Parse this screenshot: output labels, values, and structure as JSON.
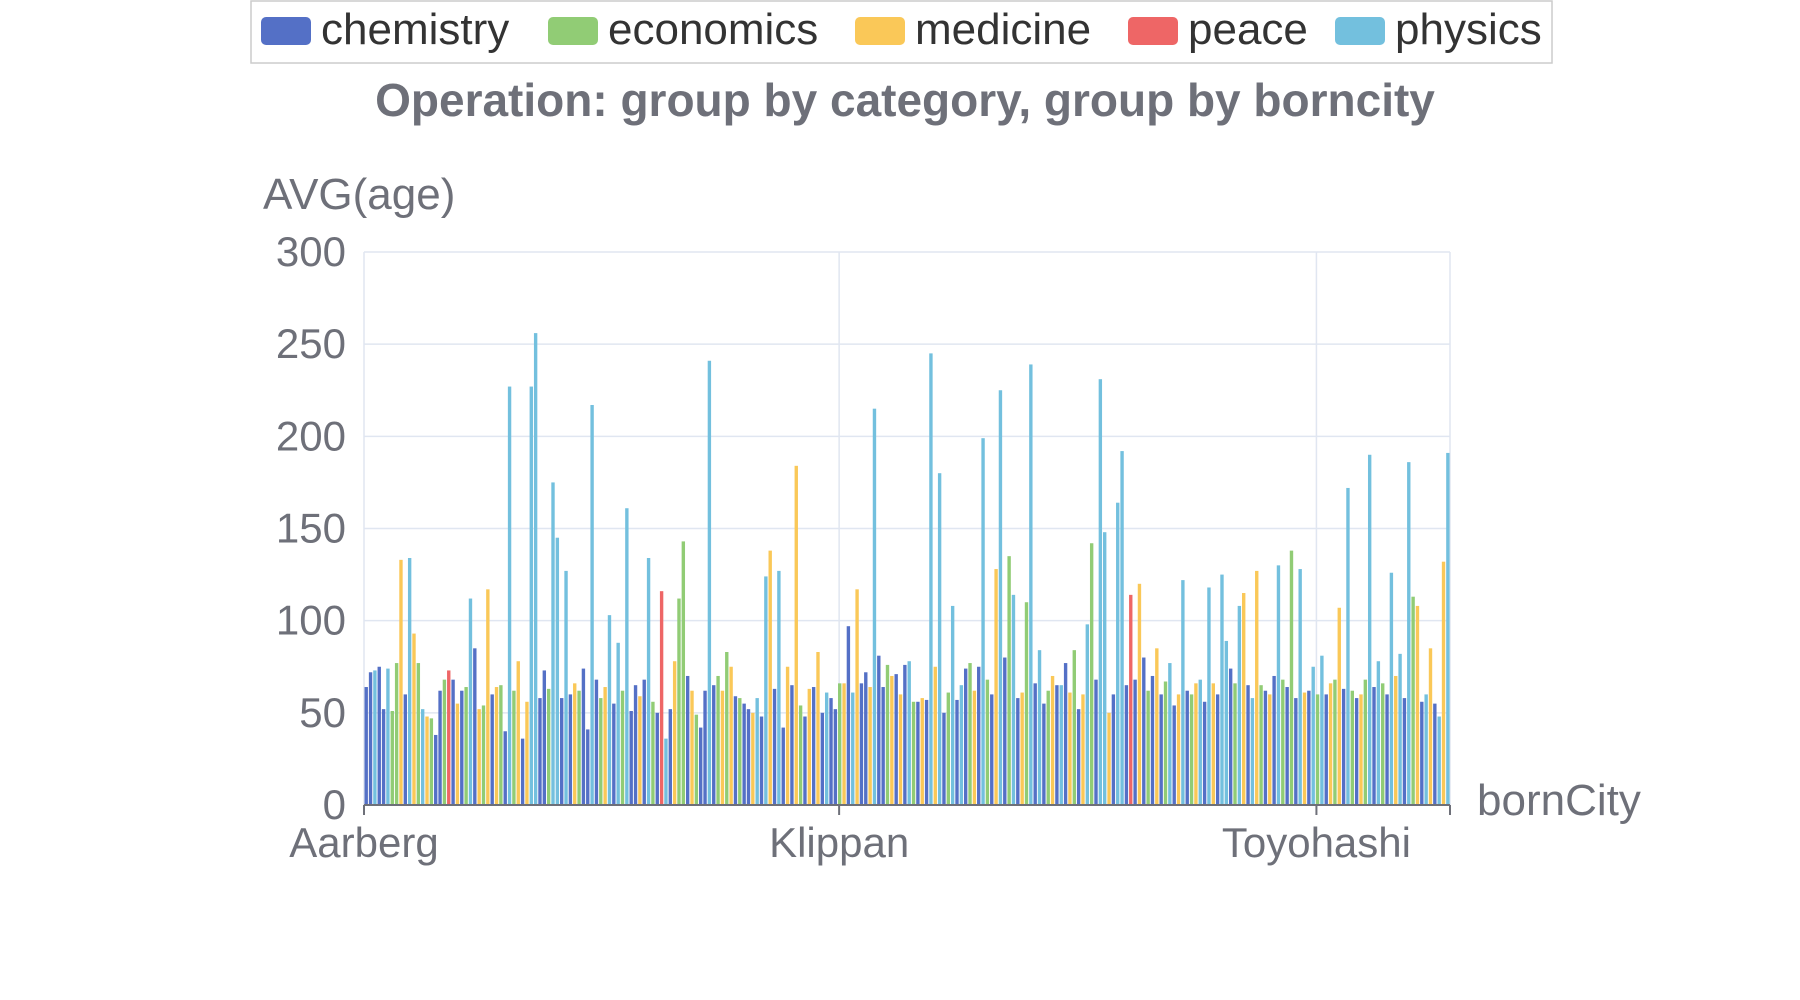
{
  "chart_data": {
    "type": "bar",
    "title": "Operation: group by category, group by borncity",
    "xlabel": "bornCity",
    "ylabel": "AVG(age)",
    "ylim": [
      0,
      300
    ],
    "y_ticks": [
      "0",
      "50",
      "100",
      "150",
      "200",
      "250",
      "300"
    ],
    "x_tick_labels": [
      "Aarberg",
      "Klippan",
      "Toyohashi"
    ],
    "grid": true,
    "legend_position": "top",
    "stacked": true,
    "series": [
      {
        "name": "chemistry",
        "color": "#5470c6"
      },
      {
        "name": "economics",
        "color": "#91cc75"
      },
      {
        "name": "medicine",
        "color": "#fac858"
      },
      {
        "name": "peace",
        "color": "#ee6666"
      },
      {
        "name": "physics",
        "color": "#73c0de"
      }
    ],
    "stacks": [
      [
        0,
        64
      ],
      [
        0,
        72
      ],
      [
        4,
        73
      ],
      [
        0,
        75
      ],
      [
        0,
        52
      ],
      [
        4,
        74
      ],
      [
        1,
        51
      ],
      [
        1,
        77
      ],
      [
        2,
        133
      ],
      [
        0,
        60
      ],
      [
        4,
        134
      ],
      [
        2,
        93
      ],
      [
        1,
        77
      ],
      [
        4,
        52
      ],
      [
        2,
        48
      ],
      [
        1,
        47
      ],
      [
        0,
        38
      ],
      [
        0,
        62
      ],
      [
        1,
        68
      ],
      [
        3,
        73
      ],
      [
        0,
        68
      ],
      [
        2,
        55
      ],
      [
        0,
        62
      ],
      [
        1,
        64
      ],
      [
        4,
        112
      ],
      [
        0,
        85
      ],
      [
        2,
        52
      ],
      [
        1,
        54
      ],
      [
        2,
        117
      ],
      [
        0,
        60
      ],
      [
        2,
        64
      ],
      [
        1,
        65
      ],
      [
        0,
        40
      ],
      [
        4,
        227
      ],
      [
        1,
        62
      ],
      [
        2,
        78
      ],
      [
        0,
        36
      ],
      [
        2,
        56
      ],
      [
        4,
        227
      ],
      [
        4,
        256
      ],
      [
        0,
        58
      ],
      [
        0,
        73
      ],
      [
        1,
        63
      ],
      [
        4,
        175
      ],
      [
        4,
        145
      ],
      [
        0,
        58
      ],
      [
        4,
        127
      ],
      [
        0,
        60
      ],
      [
        2,
        66
      ],
      [
        1,
        62
      ],
      [
        0,
        74
      ],
      [
        0,
        41
      ],
      [
        4,
        217
      ],
      [
        0,
        68
      ],
      [
        1,
        58
      ],
      [
        2,
        64
      ],
      [
        4,
        103
      ],
      [
        0,
        55
      ],
      [
        4,
        88
      ],
      [
        1,
        62
      ],
      [
        4,
        161
      ],
      [
        0,
        51
      ],
      [
        0,
        65
      ],
      [
        2,
        59
      ],
      [
        0,
        68
      ],
      [
        4,
        134
      ],
      [
        1,
        56
      ],
      [
        0,
        50
      ],
      [
        3,
        116
      ],
      [
        4,
        36
      ],
      [
        0,
        52
      ],
      [
        2,
        78
      ],
      [
        1,
        112
      ],
      [
        1,
        143
      ],
      [
        0,
        70
      ],
      [
        2,
        62
      ],
      [
        1,
        49
      ],
      [
        0,
        42
      ],
      [
        0,
        62
      ],
      [
        4,
        241
      ],
      [
        0,
        65
      ],
      [
        1,
        70
      ],
      [
        2,
        62
      ],
      [
        1,
        83
      ],
      [
        2,
        75
      ],
      [
        0,
        59
      ],
      [
        1,
        58
      ],
      [
        0,
        55
      ],
      [
        0,
        52
      ],
      [
        2,
        50
      ],
      [
        4,
        58
      ],
      [
        0,
        48
      ],
      [
        4,
        124
      ],
      [
        2,
        138
      ],
      [
        0,
        63
      ],
      [
        4,
        127
      ],
      [
        0,
        42
      ],
      [
        2,
        75
      ],
      [
        0,
        65
      ],
      [
        2,
        184
      ],
      [
        1,
        54
      ],
      [
        0,
        48
      ],
      [
        2,
        63
      ],
      [
        0,
        64
      ],
      [
        2,
        83
      ],
      [
        0,
        50
      ],
      [
        4,
        61
      ],
      [
        0,
        58
      ],
      [
        0,
        52
      ],
      [
        1,
        66
      ],
      [
        2,
        66
      ],
      [
        0,
        97
      ],
      [
        4,
        61
      ],
      [
        2,
        117
      ],
      [
        0,
        66
      ],
      [
        0,
        72
      ],
      [
        2,
        64
      ],
      [
        4,
        215
      ],
      [
        0,
        81
      ],
      [
        0,
        64
      ],
      [
        1,
        76
      ],
      [
        2,
        70
      ],
      [
        0,
        71
      ],
      [
        2,
        60
      ],
      [
        0,
        76
      ],
      [
        4,
        78
      ],
      [
        1,
        56
      ],
      [
        0,
        56
      ],
      [
        2,
        58
      ],
      [
        0,
        57
      ],
      [
        4,
        245
      ],
      [
        2,
        75
      ],
      [
        4,
        180
      ],
      [
        0,
        50
      ],
      [
        1,
        61
      ],
      [
        4,
        108
      ],
      [
        0,
        57
      ],
      [
        4,
        65
      ],
      [
        0,
        74
      ],
      [
        1,
        77
      ],
      [
        2,
        62
      ],
      [
        0,
        75
      ],
      [
        4,
        199
      ],
      [
        1,
        68
      ],
      [
        0,
        60
      ],
      [
        2,
        128
      ],
      [
        4,
        225
      ],
      [
        0,
        80
      ],
      [
        1,
        135
      ],
      [
        4,
        114
      ],
      [
        0,
        58
      ],
      [
        2,
        61
      ],
      [
        1,
        110
      ],
      [
        4,
        239
      ],
      [
        0,
        66
      ],
      [
        4,
        84
      ],
      [
        0,
        55
      ],
      [
        1,
        62
      ],
      [
        2,
        70
      ],
      [
        0,
        65
      ],
      [
        4,
        65
      ],
      [
        0,
        77
      ],
      [
        2,
        61
      ],
      [
        1,
        84
      ],
      [
        0,
        52
      ],
      [
        2,
        60
      ],
      [
        4,
        98
      ],
      [
        1,
        142
      ],
      [
        0,
        68
      ],
      [
        4,
        231
      ],
      [
        4,
        148
      ],
      [
        2,
        50
      ],
      [
        0,
        60
      ],
      [
        4,
        164
      ],
      [
        4,
        192
      ],
      [
        0,
        65
      ],
      [
        3,
        114
      ],
      [
        0,
        68
      ],
      [
        2,
        120
      ],
      [
        0,
        80
      ],
      [
        1,
        62
      ],
      [
        0,
        70
      ],
      [
        2,
        85
      ],
      [
        0,
        60
      ],
      [
        1,
        67
      ],
      [
        4,
        77
      ],
      [
        0,
        54
      ],
      [
        2,
        60
      ],
      [
        4,
        122
      ],
      [
        0,
        62
      ],
      [
        1,
        60
      ],
      [
        2,
        66
      ],
      [
        4,
        68
      ],
      [
        0,
        56
      ],
      [
        4,
        118
      ],
      [
        2,
        66
      ],
      [
        0,
        60
      ],
      [
        4,
        125
      ],
      [
        4,
        89
      ],
      [
        0,
        74
      ],
      [
        1,
        66
      ],
      [
        4,
        108
      ],
      [
        2,
        115
      ],
      [
        0,
        65
      ],
      [
        4,
        58
      ],
      [
        2,
        127
      ],
      [
        1,
        65
      ],
      [
        0,
        62
      ],
      [
        2,
        60
      ],
      [
        0,
        70
      ],
      [
        4,
        130
      ],
      [
        1,
        68
      ],
      [
        0,
        64
      ],
      [
        1,
        138
      ],
      [
        0,
        58
      ],
      [
        4,
        128
      ],
      [
        2,
        61
      ],
      [
        0,
        62
      ],
      [
        4,
        75
      ],
      [
        1,
        60
      ],
      [
        4,
        81
      ],
      [
        0,
        60
      ],
      [
        2,
        66
      ],
      [
        1,
        68
      ],
      [
        2,
        107
      ],
      [
        0,
        63
      ],
      [
        4,
        172
      ],
      [
        1,
        62
      ],
      [
        0,
        58
      ],
      [
        2,
        60
      ],
      [
        1,
        68
      ],
      [
        4,
        190
      ],
      [
        0,
        64
      ],
      [
        4,
        78
      ],
      [
        1,
        66
      ],
      [
        0,
        60
      ],
      [
        4,
        126
      ],
      [
        2,
        70
      ],
      [
        4,
        82
      ],
      [
        0,
        58
      ],
      [
        4,
        186
      ],
      [
        1,
        113
      ],
      [
        2,
        108
      ],
      [
        0,
        56
      ],
      [
        4,
        60
      ],
      [
        2,
        85
      ],
      [
        0,
        55
      ],
      [
        4,
        48
      ],
      [
        2,
        132
      ],
      [
        4,
        191
      ]
    ]
  }
}
